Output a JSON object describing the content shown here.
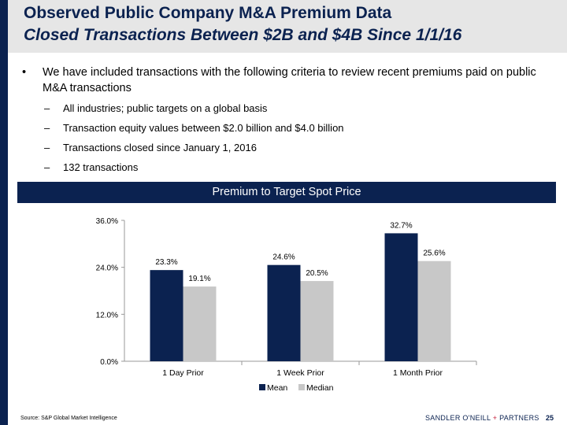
{
  "header": {
    "title": "Observed Public Company M&A Premium Data",
    "subtitle": "Closed Transactions Between $2B and $4B Since 1/1/16"
  },
  "bullets": {
    "main": "We have included transactions with the following criteria to review recent premiums paid on public M&A transactions",
    "bullet_symbol": "•",
    "dash_symbol": "–",
    "sub": [
      "All industries; public targets on a global basis",
      "Transaction equity values between $2.0 billion and $4.0 billion",
      "Transactions closed since January 1, 2016",
      "132 transactions"
    ]
  },
  "banner": {
    "title": "Premium to Target Spot Price"
  },
  "chart_data": {
    "type": "bar",
    "title": "Premium to Target Spot Price",
    "categories": [
      "1 Day Prior",
      "1 Week Prior",
      "1 Month Prior"
    ],
    "series": [
      {
        "name": "Mean",
        "color": "#0b2250",
        "values": [
          23.3,
          24.6,
          32.7
        ],
        "labels": [
          "23.3%",
          "24.6%",
          "32.7%"
        ]
      },
      {
        "name": "Median",
        "color": "#c8c8c8",
        "values": [
          19.1,
          20.5,
          25.6
        ],
        "labels": [
          "19.1%",
          "20.5%",
          "25.6%"
        ]
      }
    ],
    "ylim": [
      0,
      36
    ],
    "yticks": [
      0,
      12,
      24,
      36
    ],
    "ytick_labels": [
      "0.0%",
      "12.0%",
      "24.0%",
      "36.0%"
    ],
    "xlabel": "",
    "ylabel": "",
    "grid": false,
    "legend_position": "bottom"
  },
  "footer": {
    "source": "Source: S&P Global Market Intelligence",
    "brand_left": "SANDLER O'NEILL",
    "brand_plus": "+",
    "brand_right": "PARTNERS",
    "page": "25"
  },
  "colors": {
    "navy": "#0b2250",
    "gray": "#c8c8c8",
    "header_bg": "#e6e6e6"
  }
}
